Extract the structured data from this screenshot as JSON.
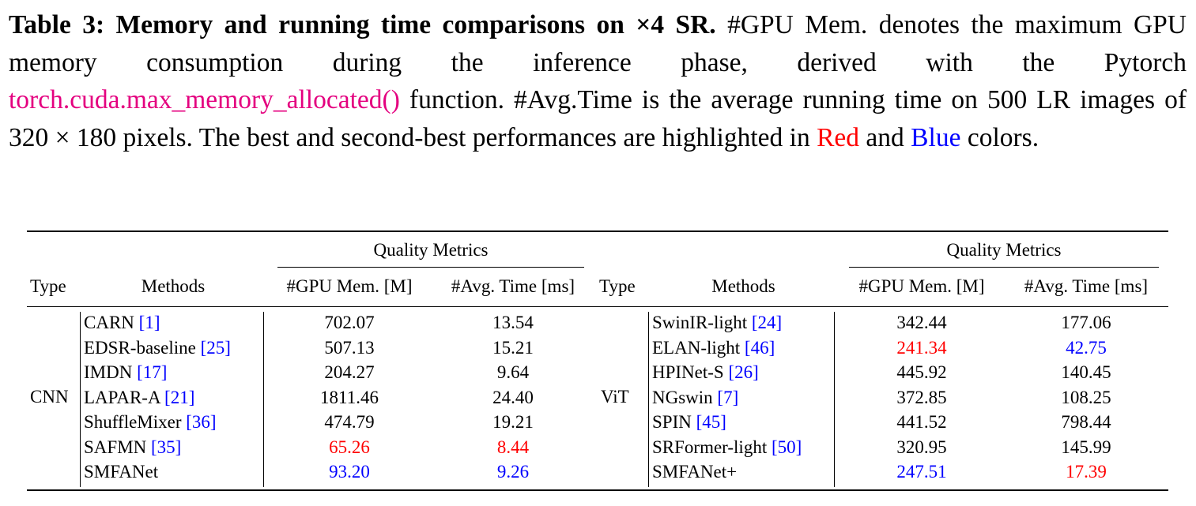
{
  "caption": {
    "label": "Table 3: Memory and running time comparisons on ×4 SR.",
    "text1": " #GPU Mem. denotes the maximum GPU memory consumption during the inference phase, derived with the Pytorch ",
    "code": "torch.cuda.max_memory_allocated()",
    "text2": " function. #Avg.Time is the average running time on 500 LR images of 320 × 180 pixels. The best and second-best performances are highlighted in ",
    "red_word": "Red",
    "and_word": " and ",
    "blue_word": "Blue",
    "tail": " colors."
  },
  "table": {
    "group_header": "Quality Metrics",
    "col_type": "Type",
    "col_methods": "Methods",
    "col_mem": "#GPU Mem. [M]",
    "col_time": "#Avg. Time [ms]",
    "left": {
      "type": "CNN",
      "rows": [
        {
          "method": "CARN ",
          "ref": "[1]",
          "mem": "702.07",
          "time": "13.54",
          "mem_color": "",
          "time_color": ""
        },
        {
          "method": "EDSR-baseline ",
          "ref": "[25]",
          "mem": "507.13",
          "time": "15.21",
          "mem_color": "",
          "time_color": ""
        },
        {
          "method": "IMDN ",
          "ref": "[17]",
          "mem": "204.27",
          "time": "9.64",
          "mem_color": "",
          "time_color": ""
        },
        {
          "method": "LAPAR-A ",
          "ref": "[21]",
          "mem": "1811.46",
          "time": "24.40",
          "mem_color": "",
          "time_color": ""
        },
        {
          "method": "ShuffleMixer ",
          "ref": "[36]",
          "mem": "474.79",
          "time": "19.21",
          "mem_color": "",
          "time_color": ""
        },
        {
          "method": "SAFMN ",
          "ref": "[35]",
          "mem": "65.26",
          "time": "8.44",
          "mem_color": "red",
          "time_color": "red"
        },
        {
          "method": "SMFANet",
          "ref": "",
          "mem": "93.20",
          "time": "9.26",
          "mem_color": "blue",
          "time_color": "blue"
        }
      ]
    },
    "right": {
      "type": "ViT",
      "rows": [
        {
          "method": "SwinIR-light ",
          "ref": "[24]",
          "mem": "342.44",
          "time": "177.06",
          "mem_color": "",
          "time_color": ""
        },
        {
          "method": "ELAN-light ",
          "ref": "[46]",
          "mem": "241.34",
          "time": "42.75",
          "mem_color": "red",
          "time_color": "blue"
        },
        {
          "method": "HPINet-S ",
          "ref": "[26]",
          "mem": "445.92",
          "time": "140.45",
          "mem_color": "",
          "time_color": ""
        },
        {
          "method": "NGswin ",
          "ref": "[7]",
          "mem": "372.85",
          "time": "108.25",
          "mem_color": "",
          "time_color": ""
        },
        {
          "method": "SPIN ",
          "ref": "[45]",
          "mem": "441.52",
          "time": "798.44",
          "mem_color": "",
          "time_color": ""
        },
        {
          "method": "SRFormer-light ",
          "ref": "[50]",
          "mem": "320.95",
          "time": "145.99",
          "mem_color": "",
          "time_color": ""
        },
        {
          "method": "SMFANet+",
          "ref": "",
          "mem": "247.51",
          "time": "17.39",
          "mem_color": "blue",
          "time_color": "red"
        }
      ]
    }
  }
}
